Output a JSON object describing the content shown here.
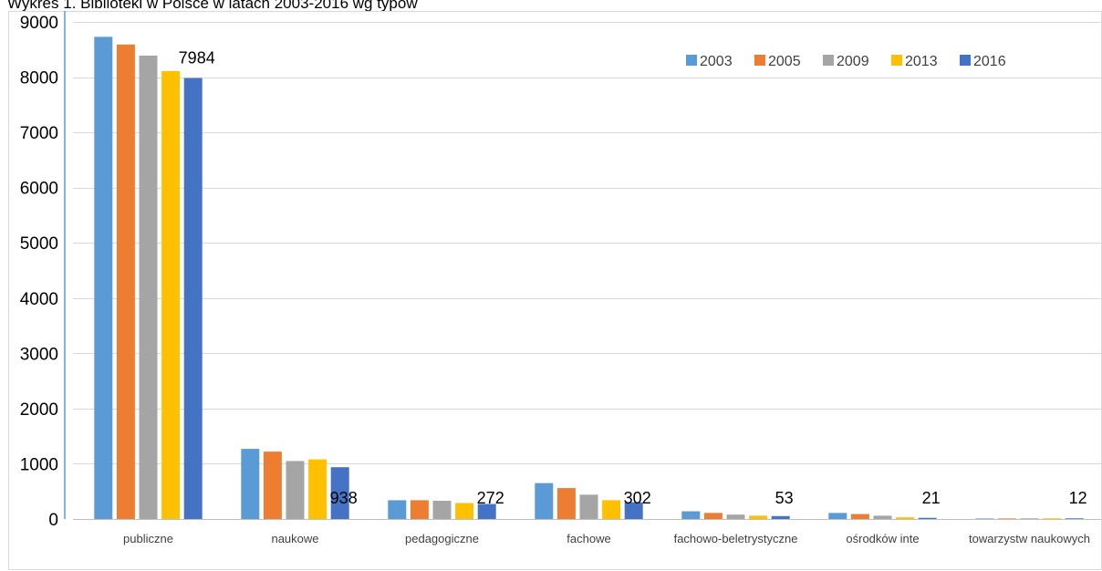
{
  "chart_data": {
    "type": "bar",
    "title": "Wykres 1. Biblioteki w Polsce w latach 2003-2016 wg typów",
    "xlabel": "",
    "ylabel": "",
    "ylim": [
      0,
      9000
    ],
    "yticks": [
      0,
      1000,
      2000,
      3000,
      4000,
      5000,
      6000,
      7000,
      8000,
      9000
    ],
    "grid": true,
    "legend_position": "top-right",
    "categories": [
      "publiczne",
      "naukowe",
      "pedagogiczne",
      "fachowe",
      "fachowo-beletrystyczne",
      "ośrodków inte",
      "towarzystw naukowych"
    ],
    "series": [
      {
        "name": "2003",
        "color": "#5B9BD5",
        "values": [
          8730,
          1270,
          340,
          650,
          140,
          110,
          10
        ]
      },
      {
        "name": "2005",
        "color": "#ED7D31",
        "values": [
          8590,
          1220,
          340,
          560,
          110,
          90,
          10
        ]
      },
      {
        "name": "2009",
        "color": "#A5A5A5",
        "values": [
          8390,
          1050,
          330,
          440,
          80,
          60,
          12
        ]
      },
      {
        "name": "2013",
        "color": "#FFC000",
        "values": [
          8110,
          1080,
          290,
          340,
          60,
          30,
          12
        ]
      },
      {
        "name": "2016",
        "color": "#4472C4",
        "values": [
          7984,
          938,
          272,
          302,
          53,
          21,
          12
        ]
      }
    ],
    "data_labels": [
      {
        "series": "2016",
        "category": "publiczne",
        "text": "7984"
      },
      {
        "series": "2016",
        "category": "naukowe",
        "text": "938"
      },
      {
        "series": "2016",
        "category": "pedagogiczne",
        "text": "272"
      },
      {
        "series": "2016",
        "category": "fachowe",
        "text": "302"
      },
      {
        "series": "2016",
        "category": "fachowo-beletrystyczne",
        "text": "53"
      },
      {
        "series": "2016",
        "category": "ośrodków inte",
        "text": "21"
      },
      {
        "series": "2016",
        "category": "towarzystw naukowych",
        "text": "12"
      }
    ]
  }
}
